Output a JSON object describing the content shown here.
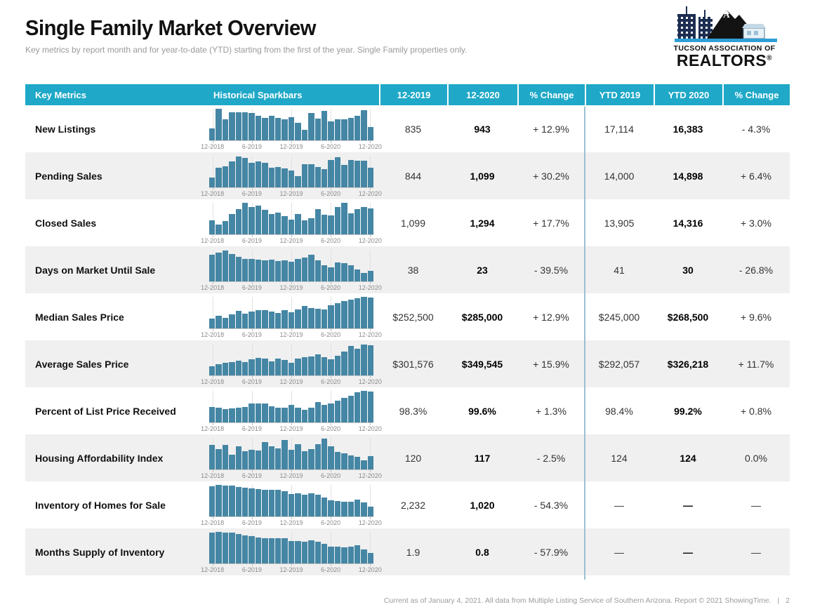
{
  "page": {
    "title": "Single Family Market Overview",
    "subtitle": "Key metrics by report month and for year-to-date (YTD) starting from the first of the year. Single Family properties only.",
    "footer_text": "Current as of January 4, 2021. All data from Multiple Listing Service of Southern Arizona. Report © 2021 ShowingTime.",
    "footer_separator": "|",
    "page_number": "2"
  },
  "logo": {
    "line1": "TUCSON ASSOCIATION OF",
    "line2": "REALTORS",
    "registered": "®"
  },
  "colors": {
    "header_cyan": "#1fa8c8",
    "bar_blue": "#4586a4",
    "row_alt_gray": "#f0f0f0",
    "ytd_divider_blue": "#9cc0d0",
    "logo_blue": "#2f9fd6",
    "logo_navy": "#1d2e52"
  },
  "table": {
    "headers": [
      "Key Metrics",
      "Historical Sparkbars",
      "12-2019",
      "12-2020",
      "% Change",
      "YTD 2019",
      "YTD 2020",
      "% Change"
    ],
    "rows": [
      {
        "metric": "New Listings",
        "m2019": "835",
        "m2020": "943",
        "m_change": "+ 12.9%",
        "ytd2019": "17,114",
        "ytd2020": "16,383",
        "ytd_change": "- 4.3%"
      },
      {
        "metric": "Pending Sales",
        "m2019": "844",
        "m2020": "1,099",
        "m_change": "+ 30.2%",
        "ytd2019": "14,000",
        "ytd2020": "14,898",
        "ytd_change": "+ 6.4%"
      },
      {
        "metric": "Closed Sales",
        "m2019": "1,099",
        "m2020": "1,294",
        "m_change": "+ 17.7%",
        "ytd2019": "13,905",
        "ytd2020": "14,316",
        "ytd_change": "+ 3.0%"
      },
      {
        "metric": "Days on Market Until Sale",
        "m2019": "38",
        "m2020": "23",
        "m_change": "- 39.5%",
        "ytd2019": "41",
        "ytd2020": "30",
        "ytd_change": "- 26.8%"
      },
      {
        "metric": "Median Sales Price",
        "m2019": "$252,500",
        "m2020": "$285,000",
        "m_change": "+ 12.9%",
        "ytd2019": "$245,000",
        "ytd2020": "$268,500",
        "ytd_change": "+ 9.6%"
      },
      {
        "metric": "Average Sales Price",
        "m2019": "$301,576",
        "m2020": "$349,545",
        "m_change": "+ 15.9%",
        "ytd2019": "$292,057",
        "ytd2020": "$326,218",
        "ytd_change": "+ 11.7%"
      },
      {
        "metric": "Percent of List Price Received",
        "m2019": "98.3%",
        "m2020": "99.6%",
        "m_change": "+ 1.3%",
        "ytd2019": "98.4%",
        "ytd2020": "99.2%",
        "ytd_change": "+ 0.8%"
      },
      {
        "metric": "Housing Affordability Index",
        "m2019": "120",
        "m2020": "117",
        "m_change": "- 2.5%",
        "ytd2019": "124",
        "ytd2020": "124",
        "ytd_change": "0.0%"
      },
      {
        "metric": "Inventory of Homes for Sale",
        "m2019": "2,232",
        "m2020": "1,020",
        "m_change": "- 54.3%",
        "ytd2019": "—",
        "ytd2020": "—",
        "ytd_change": "—"
      },
      {
        "metric": "Months Supply of Inventory",
        "m2019": "1.9",
        "m2020": "0.8",
        "m_change": "- 57.9%",
        "ytd2019": "—",
        "ytd2020": "—",
        "ytd_change": "—"
      }
    ]
  },
  "sparkbar_axis": {
    "tick_labels": [
      "12-2018",
      "6-2019",
      "12-2019",
      "6-2020",
      "12-2020"
    ],
    "tick_bar_indices": [
      0,
      6,
      12,
      18,
      24
    ]
  },
  "chart_data": [
    {
      "type": "bar",
      "name": "New Listings sparkbar",
      "x_range": [
        "12-2018",
        "12-2020"
      ],
      "n_bars": 25,
      "relative_heights": [
        0.36,
        1.0,
        0.66,
        0.88,
        0.88,
        0.88,
        0.85,
        0.76,
        0.7,
        0.76,
        0.7,
        0.66,
        0.73,
        0.55,
        0.32,
        0.85,
        0.68,
        0.92,
        0.6,
        0.65,
        0.65,
        0.7,
        0.76,
        0.95,
        0.42
      ]
    },
    {
      "type": "bar",
      "name": "Pending Sales sparkbar",
      "x_range": [
        "12-2018",
        "12-2020"
      ],
      "n_bars": 25,
      "relative_heights": [
        0.3,
        0.62,
        0.66,
        0.82,
        0.96,
        0.92,
        0.76,
        0.82,
        0.76,
        0.62,
        0.64,
        0.58,
        0.52,
        0.34,
        0.72,
        0.72,
        0.64,
        0.56,
        0.86,
        0.94,
        0.7,
        0.86,
        0.84,
        0.84,
        0.62
      ]
    },
    {
      "type": "bar",
      "name": "Closed Sales sparkbar",
      "x_range": [
        "12-2018",
        "12-2020"
      ],
      "n_bars": 25,
      "relative_heights": [
        0.44,
        0.3,
        0.42,
        0.64,
        0.78,
        1.0,
        0.86,
        0.9,
        0.76,
        0.64,
        0.68,
        0.56,
        0.46,
        0.64,
        0.44,
        0.5,
        0.78,
        0.62,
        0.6,
        0.86,
        1.0,
        0.66,
        0.78,
        0.86,
        0.82
      ]
    },
    {
      "type": "bar",
      "name": "Days on Market Until Sale sparkbar",
      "x_range": [
        "12-2018",
        "12-2020"
      ],
      "n_bars": 25,
      "relative_heights": [
        0.84,
        0.9,
        0.97,
        0.86,
        0.77,
        0.71,
        0.69,
        0.67,
        0.66,
        0.68,
        0.64,
        0.66,
        0.62,
        0.7,
        0.74,
        0.84,
        0.66,
        0.5,
        0.44,
        0.6,
        0.56,
        0.5,
        0.36,
        0.25,
        0.32
      ]
    },
    {
      "type": "bar",
      "name": "Median Sales Price sparkbar",
      "x_range": [
        "12-2018",
        "12-2020"
      ],
      "n_bars": 25,
      "relative_heights": [
        0.3,
        0.38,
        0.33,
        0.44,
        0.54,
        0.46,
        0.52,
        0.56,
        0.56,
        0.52,
        0.48,
        0.56,
        0.5,
        0.6,
        0.7,
        0.64,
        0.62,
        0.58,
        0.72,
        0.8,
        0.86,
        0.9,
        0.94,
        1.0,
        0.97
      ]
    },
    {
      "type": "bar",
      "name": "Average Sales Price sparkbar",
      "x_range": [
        "12-2018",
        "12-2020"
      ],
      "n_bars": 25,
      "relative_heights": [
        0.28,
        0.34,
        0.38,
        0.42,
        0.46,
        0.42,
        0.5,
        0.55,
        0.52,
        0.44,
        0.52,
        0.48,
        0.38,
        0.52,
        0.56,
        0.58,
        0.66,
        0.56,
        0.5,
        0.62,
        0.74,
        0.92,
        0.84,
        0.96,
        0.94
      ]
    },
    {
      "type": "bar",
      "name": "Percent of List Price Received sparkbar",
      "x_range": [
        "12-2018",
        "12-2020"
      ],
      "n_bars": 25,
      "relative_heights": [
        0.48,
        0.46,
        0.42,
        0.44,
        0.46,
        0.48,
        0.58,
        0.58,
        0.58,
        0.5,
        0.46,
        0.46,
        0.54,
        0.46,
        0.4,
        0.46,
        0.64,
        0.55,
        0.6,
        0.68,
        0.76,
        0.84,
        0.94,
        1.0,
        0.96
      ]
    },
    {
      "type": "bar",
      "name": "Housing Affordability Index sparkbar",
      "x_range": [
        "12-2018",
        "12-2020"
      ],
      "n_bars": 25,
      "relative_heights": [
        0.76,
        0.64,
        0.76,
        0.46,
        0.72,
        0.56,
        0.62,
        0.6,
        0.86,
        0.72,
        0.66,
        0.92,
        0.62,
        0.78,
        0.56,
        0.64,
        0.78,
        0.96,
        0.72,
        0.54,
        0.5,
        0.44,
        0.38,
        0.28,
        0.42
      ]
    },
    {
      "type": "bar",
      "name": "Inventory of Homes for Sale sparkbar",
      "x_range": [
        "12-2018",
        "12-2020"
      ],
      "n_bars": 25,
      "relative_heights": [
        0.95,
        1.0,
        0.97,
        0.97,
        0.93,
        0.9,
        0.88,
        0.85,
        0.83,
        0.83,
        0.83,
        0.8,
        0.7,
        0.72,
        0.68,
        0.72,
        0.68,
        0.6,
        0.5,
        0.48,
        0.46,
        0.46,
        0.52,
        0.44,
        0.3
      ]
    },
    {
      "type": "bar",
      "name": "Months Supply of Inventory sparkbar",
      "x_range": [
        "12-2018",
        "12-2020"
      ],
      "n_bars": 25,
      "relative_heights": [
        0.96,
        1.0,
        0.97,
        0.97,
        0.92,
        0.88,
        0.85,
        0.82,
        0.78,
        0.78,
        0.8,
        0.78,
        0.7,
        0.7,
        0.68,
        0.72,
        0.68,
        0.62,
        0.52,
        0.52,
        0.5,
        0.52,
        0.56,
        0.44,
        0.32
      ]
    }
  ]
}
